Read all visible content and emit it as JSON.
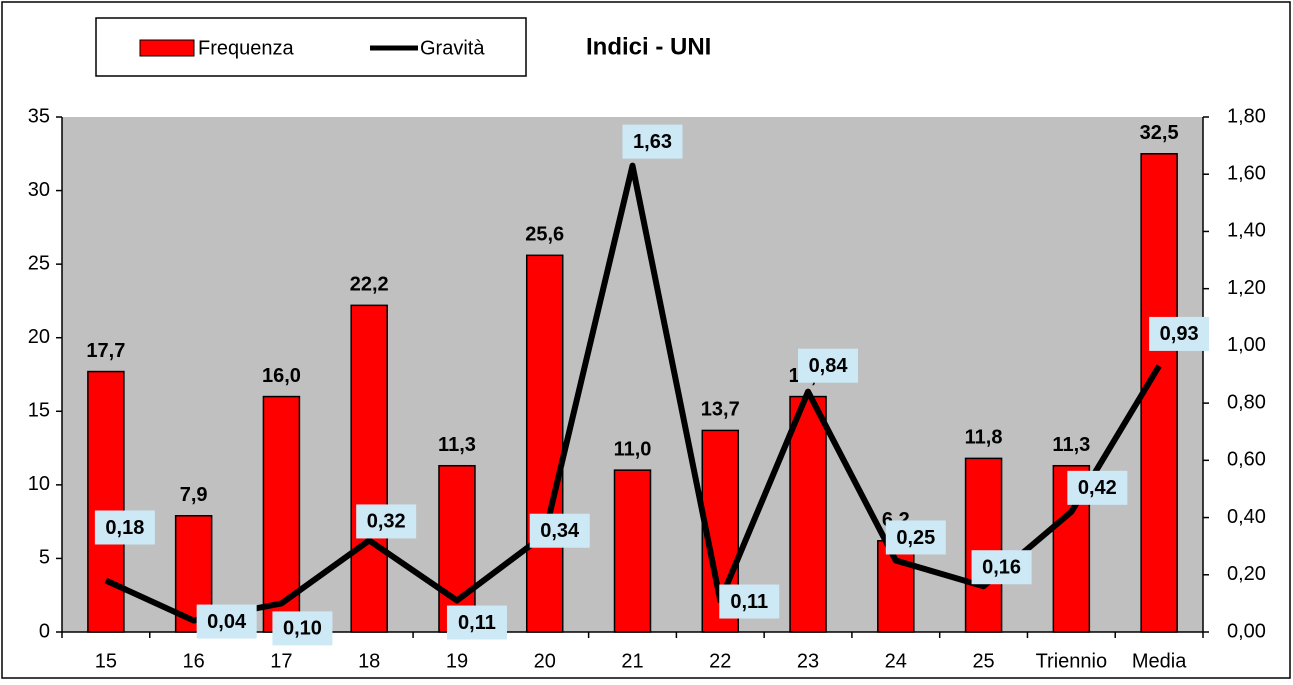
{
  "chart_data": {
    "type": "bar-line",
    "title": "Indici - UNI",
    "categories": [
      "15",
      "16",
      "17",
      "18",
      "19",
      "20",
      "21",
      "22",
      "23",
      "24",
      "25",
      "Triennio",
      "Media"
    ],
    "series": [
      {
        "name": "Frequenza",
        "type": "bar",
        "color": "#ff0000",
        "values": [
          17.7,
          7.9,
          16.0,
          22.2,
          11.3,
          25.6,
          11.0,
          13.7,
          16.0,
          6.2,
          11.8,
          11.3,
          32.5
        ],
        "value_labels": [
          "17,7",
          "7,9",
          "16,0",
          "22,2",
          "11,3",
          "25,6",
          "11,0",
          "13,7",
          "16,0",
          "6,2",
          "11,8",
          "11,3",
          "32,5"
        ]
      },
      {
        "name": "Gravità",
        "type": "line",
        "axis": "y2",
        "color": "#000000",
        "values": [
          0.18,
          0.04,
          0.1,
          0.32,
          0.11,
          0.34,
          1.63,
          0.11,
          0.84,
          0.25,
          0.16,
          0.42,
          0.93
        ],
        "value_labels": [
          "0,18",
          "0,04",
          "0,10",
          "0,32",
          "0,11",
          "0,34",
          "1,63",
          "0,11",
          "0,84",
          "0,25",
          "0,16",
          "0,42",
          "0,93"
        ]
      }
    ],
    "ylim": [
      0,
      35
    ],
    "yticks": [
      0,
      5,
      10,
      15,
      20,
      25,
      30,
      35
    ],
    "y2lim": [
      0,
      1.8
    ],
    "y2ticks": [
      {
        "value": 0,
        "label": "0,00"
      },
      {
        "value": 0.2,
        "label": "0,20"
      },
      {
        "value": 0.4,
        "label": "0,40"
      },
      {
        "value": 0.6,
        "label": "0,60"
      },
      {
        "value": 0.8,
        "label": "0,80"
      },
      {
        "value": 1.0,
        "label": "1,00"
      },
      {
        "value": 1.2,
        "label": "1,20"
      },
      {
        "value": 1.4,
        "label": "1,40"
      },
      {
        "value": 1.6,
        "label": "1,60"
      },
      {
        "value": 1.8,
        "label": "1,80"
      }
    ]
  }
}
